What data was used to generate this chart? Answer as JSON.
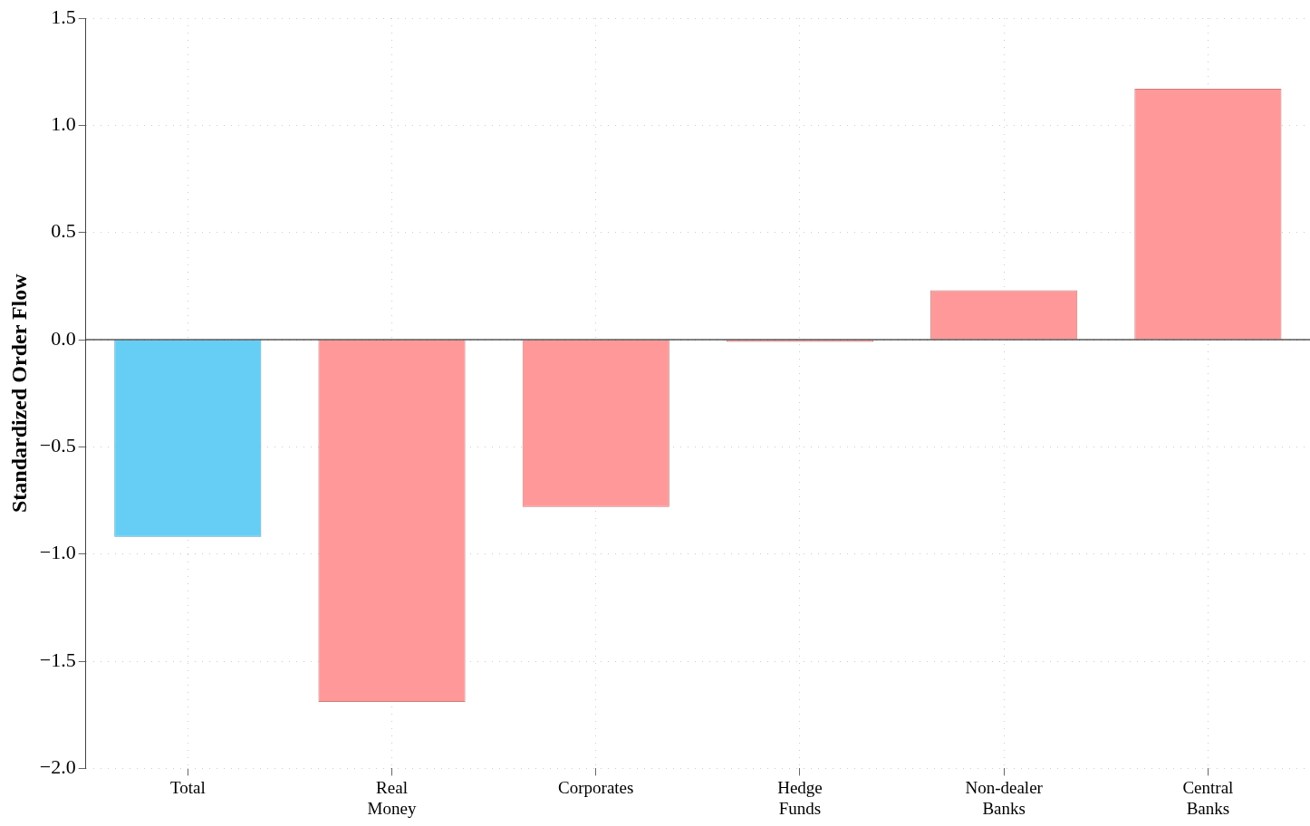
{
  "chart_data": {
    "type": "bar",
    "ylabel": "Standardized Order Flow",
    "categories": [
      "Total",
      "Real Money",
      "Corporates",
      "Hedge Funds",
      "Non-dealer Banks",
      "Central Banks"
    ],
    "values": [
      -0.92,
      -1.69,
      -0.78,
      -0.01,
      0.23,
      1.17
    ],
    "colors": [
      "#66cef5",
      "#ff9999",
      "#ff9999",
      "#ff9999",
      "#ff9999",
      "#ff9999"
    ],
    "ylim": [
      -2.0,
      1.5
    ],
    "yticks": [
      {
        "value": -2.0,
        "label": "−2.0"
      },
      {
        "value": -1.5,
        "label": "−1.5"
      },
      {
        "value": -1.0,
        "label": "−1.0"
      },
      {
        "value": -0.5,
        "label": "−0.5"
      },
      {
        "value": 0,
        "label": "0.0"
      },
      {
        "value": 0.5,
        "label": "0.5"
      },
      {
        "value": 1.0,
        "label": "1.0"
      },
      {
        "value": 1.5,
        "label": "1.5"
      }
    ],
    "ref_lines": [
      {
        "axis": "y",
        "value": 0,
        "color": "#000000"
      }
    ],
    "grid": true,
    "legend": false
  }
}
